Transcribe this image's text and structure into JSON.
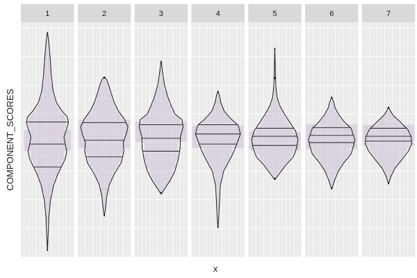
{
  "chart_data": {
    "type": "violin",
    "facet_by": "component",
    "panels": [
      "1",
      "2",
      "3",
      "4",
      "5",
      "6",
      "7"
    ],
    "xlabel": "x",
    "ylabel": "COMPONENT_SCORES",
    "y_tick_labels_shown": false,
    "x_tick_labels_shown": false,
    "grid": true,
    "draw_quantiles": [
      0.25,
      0.5,
      0.75
    ],
    "overlay": "dotplot",
    "colors": {
      "panel_bg": "#ebebeb",
      "strip_bg": "#d9d9d9",
      "grid_major": "#ffffff",
      "grid_minor": "#f4f4f4",
      "violin_outline": "#1a1a1a",
      "dots": "#c9b9d1"
    },
    "violins": [
      {
        "panel": "1",
        "min": -3.78,
        "q1": -0.85,
        "median": -0.05,
        "q3": 0.72,
        "max": 3.85,
        "shape": [
          [
            -3.78,
            0.0
          ],
          [
            -3.2,
            0.03
          ],
          [
            -2.6,
            0.06
          ],
          [
            -2.0,
            0.13
          ],
          [
            -1.5,
            0.26
          ],
          [
            -1.1,
            0.44
          ],
          [
            -0.8,
            0.62
          ],
          [
            -0.55,
            0.76
          ],
          [
            -0.3,
            0.82
          ],
          [
            -0.05,
            0.75
          ],
          [
            0.2,
            0.7
          ],
          [
            0.45,
            0.8
          ],
          [
            0.7,
            0.89
          ],
          [
            0.9,
            0.84
          ],
          [
            1.1,
            0.62
          ],
          [
            1.4,
            0.38
          ],
          [
            1.8,
            0.24
          ],
          [
            2.3,
            0.17
          ],
          [
            2.8,
            0.13
          ],
          [
            3.2,
            0.09
          ],
          [
            3.55,
            0.05
          ],
          [
            3.85,
            0.0
          ]
        ]
      },
      {
        "panel": "2",
        "min": -2.57,
        "q1": -0.5,
        "median": 0.08,
        "q3": 0.7,
        "max": 2.3,
        "shape": [
          [
            -2.57,
            0.0
          ],
          [
            -2.3,
            0.05
          ],
          [
            -1.9,
            0.1
          ],
          [
            -1.5,
            0.2
          ],
          [
            -1.1,
            0.42
          ],
          [
            -0.7,
            0.72
          ],
          [
            -0.3,
            0.83
          ],
          [
            0.0,
            0.8
          ],
          [
            0.3,
            0.93
          ],
          [
            0.55,
            1.0
          ],
          [
            0.8,
            0.86
          ],
          [
            1.1,
            0.6
          ],
          [
            1.4,
            0.42
          ],
          [
            1.7,
            0.3
          ],
          [
            2.0,
            0.19
          ],
          [
            2.2,
            0.1
          ],
          [
            2.3,
            0.0
          ]
        ]
      },
      {
        "panel": "3",
        "min": -1.8,
        "q1": -0.3,
        "median": 0.15,
        "q3": 0.62,
        "max": 2.85,
        "shape": [
          [
            -1.8,
            0.0
          ],
          [
            -1.6,
            0.16
          ],
          [
            -1.3,
            0.4
          ],
          [
            -1.0,
            0.58
          ],
          [
            -0.6,
            0.72
          ],
          [
            -0.2,
            0.8
          ],
          [
            0.2,
            0.82
          ],
          [
            0.55,
            0.93
          ],
          [
            0.8,
            0.88
          ],
          [
            1.0,
            0.58
          ],
          [
            1.3,
            0.42
          ],
          [
            1.6,
            0.28
          ],
          [
            2.0,
            0.15
          ],
          [
            2.4,
            0.07
          ],
          [
            2.85,
            0.0
          ]
        ]
      },
      {
        "panel": "4",
        "min": -2.98,
        "q1": -0.05,
        "median": 0.3,
        "q3": 0.62,
        "max": 1.8,
        "shape": [
          [
            -2.98,
            0.0
          ],
          [
            -2.5,
            0.04
          ],
          [
            -2.0,
            0.07
          ],
          [
            -1.5,
            0.1
          ],
          [
            -1.0,
            0.24
          ],
          [
            -0.6,
            0.5
          ],
          [
            -0.3,
            0.68
          ],
          [
            0.0,
            0.82
          ],
          [
            0.3,
            0.95
          ],
          [
            0.6,
            0.86
          ],
          [
            0.85,
            0.52
          ],
          [
            1.1,
            0.26
          ],
          [
            1.4,
            0.12
          ],
          [
            1.65,
            0.06
          ],
          [
            1.8,
            0.0
          ]
        ]
      },
      {
        "panel": "5",
        "min": -1.3,
        "q1": -0.1,
        "median": 0.22,
        "q3": 0.5,
        "max": 3.3,
        "shape": [
          [
            -1.3,
            0.0
          ],
          [
            -1.1,
            0.18
          ],
          [
            -0.8,
            0.45
          ],
          [
            -0.5,
            0.78
          ],
          [
            -0.2,
            0.92
          ],
          [
            0.1,
            0.98
          ],
          [
            0.4,
            0.88
          ],
          [
            0.7,
            0.64
          ],
          [
            1.0,
            0.4
          ],
          [
            1.3,
            0.2
          ],
          [
            1.6,
            0.09
          ],
          [
            2.0,
            0.04
          ],
          [
            2.6,
            0.02
          ],
          [
            3.3,
            0.0
          ]
        ]
      },
      {
        "panel": "6",
        "min": -1.63,
        "q1": 0.0,
        "median": 0.25,
        "q3": 0.52,
        "max": 1.6,
        "shape": [
          [
            -1.63,
            0.0
          ],
          [
            -1.3,
            0.13
          ],
          [
            -1.0,
            0.28
          ],
          [
            -0.7,
            0.52
          ],
          [
            -0.4,
            0.82
          ],
          [
            -0.1,
            0.93
          ],
          [
            0.1,
            0.98
          ],
          [
            0.3,
            0.9
          ],
          [
            0.5,
            0.82
          ],
          [
            0.7,
            0.56
          ],
          [
            0.95,
            0.32
          ],
          [
            1.2,
            0.15
          ],
          [
            1.4,
            0.09
          ],
          [
            1.6,
            0.0
          ]
        ]
      },
      {
        "panel": "7",
        "min": -1.45,
        "q1": 0.05,
        "median": 0.22,
        "q3": 0.5,
        "max": 1.25,
        "shape": [
          [
            -1.45,
            0.0
          ],
          [
            -1.2,
            0.09
          ],
          [
            -0.9,
            0.27
          ],
          [
            -0.6,
            0.56
          ],
          [
            -0.3,
            0.84
          ],
          [
            -0.05,
            0.98
          ],
          [
            0.2,
            0.96
          ],
          [
            0.45,
            0.82
          ],
          [
            0.7,
            0.52
          ],
          [
            0.95,
            0.2
          ],
          [
            1.1,
            0.08
          ],
          [
            1.25,
            0.0
          ]
        ]
      }
    ],
    "dotplot": [
      {
        "panel": "1",
        "y": [
          -0.3,
          0.4
        ],
        "width": 0.9
      },
      {
        "panel": "2",
        "y": [
          -0.2,
          0.8
        ],
        "width": 0.95
      },
      {
        "panel": "3",
        "y": [
          0.0,
          0.7
        ],
        "width": 0.95
      },
      {
        "panel": "4",
        "y": [
          -0.2,
          0.6
        ],
        "width": 0.95
      },
      {
        "panel": "5",
        "y": [
          -0.3,
          0.4
        ],
        "width": 0.95
      },
      {
        "panel": "6",
        "y": [
          -0.2,
          0.6
        ],
        "width": 0.95
      },
      {
        "panel": "7",
        "y": [
          -0.1,
          0.6
        ],
        "width": 0.95
      }
    ],
    "outliers": [
      {
        "panel": "5",
        "y": 2.25
      }
    ],
    "ylim": [
      -4,
      4.2
    ]
  }
}
